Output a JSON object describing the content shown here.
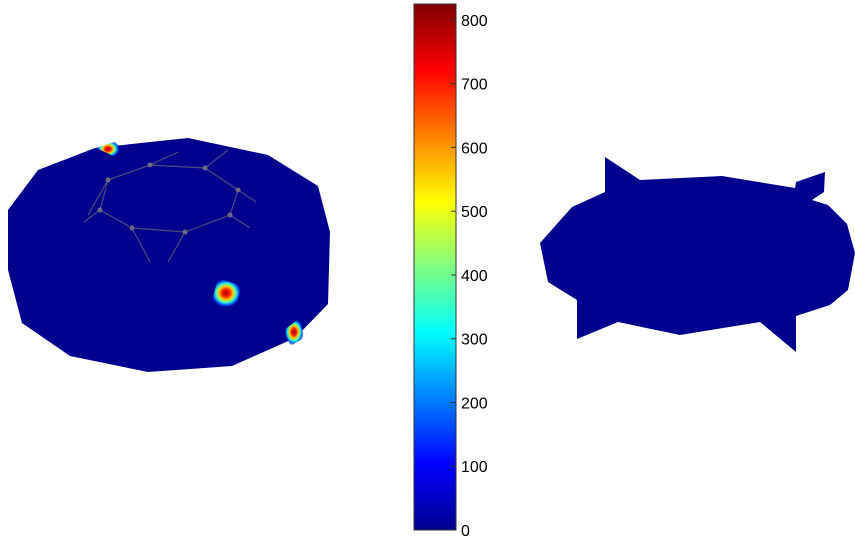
{
  "colorbar": {
    "min": 0,
    "max": 825,
    "colormap": "jet",
    "ticks": [
      "0",
      "100",
      "200",
      "300",
      "400",
      "500",
      "600",
      "700",
      "800"
    ],
    "tick_values": [
      0,
      100,
      200,
      300,
      400,
      500,
      600,
      700,
      800
    ]
  },
  "colors": {
    "surface": "#00008f",
    "wireframe": "#5a5a6e",
    "background": "#ffffff"
  },
  "hotspots": [
    {
      "name": "hotspot-top-edge",
      "value": 825
    },
    {
      "name": "hotspot-center",
      "value": 780
    },
    {
      "name": "hotspot-right-edge",
      "value": 760
    }
  ]
}
